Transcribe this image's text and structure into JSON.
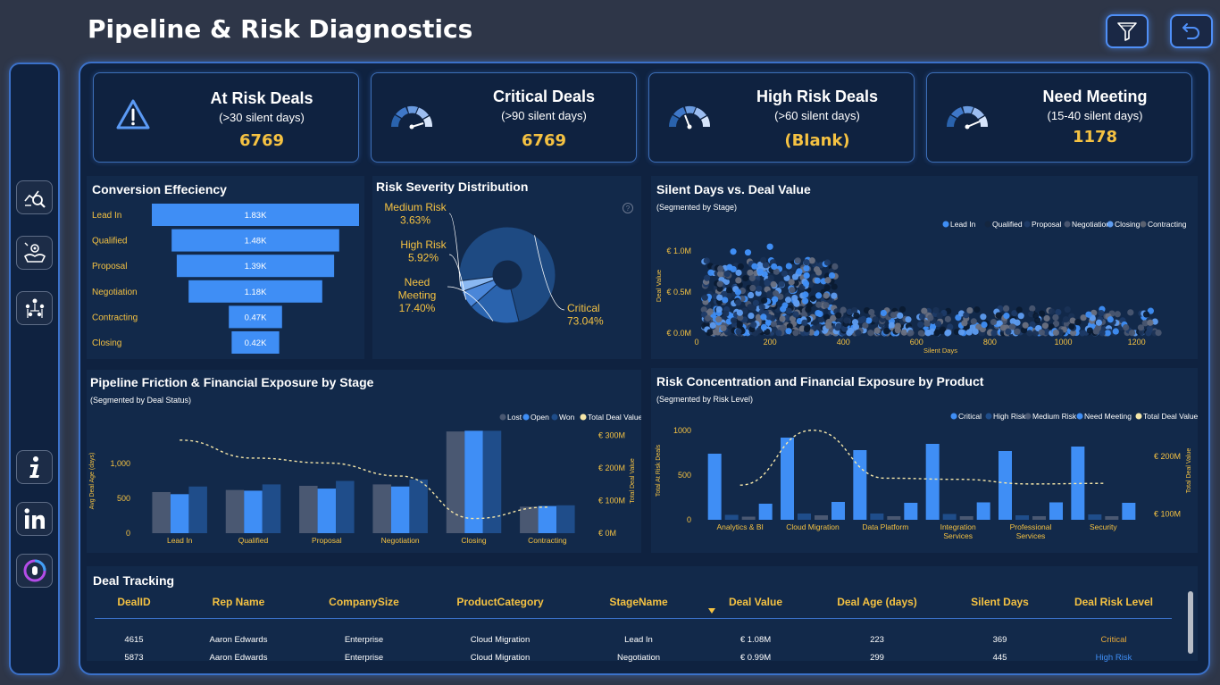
{
  "header": {
    "title": "Pipeline & Risk Diagnostics"
  },
  "kpis": [
    {
      "title": "At Risk Deals",
      "subtitle": "(>30 silent days)",
      "value": "6769",
      "icon": "warning-icon"
    },
    {
      "title": "Critical Deals",
      "subtitle": "(>90 silent days)",
      "value": "6769",
      "icon": "gauge-icon"
    },
    {
      "title": "High Risk Deals",
      "subtitle": "(>60 silent days)",
      "value": "(Blank)",
      "icon": "gauge-icon"
    },
    {
      "title": "Need Meeting",
      "subtitle": "(15-40 silent days)",
      "value": "1178",
      "icon": "gauge-icon"
    }
  ],
  "funnel": {
    "title": "Conversion Effeciency",
    "chart_data": {
      "type": "bar",
      "categories": [
        "Lead In",
        "Qualified",
        "Proposal",
        "Negotiation",
        "Contracting",
        "Closing"
      ],
      "values": [
        1830,
        1480,
        1390,
        1180,
        470,
        420
      ],
      "labels": [
        "1.83K",
        "1.48K",
        "1.39K",
        "1.18K",
        "0.47K",
        "0.42K"
      ]
    }
  },
  "donut": {
    "title": "Risk Severity Distribution",
    "chart_data": {
      "type": "pie",
      "slices": [
        {
          "name": "Critical",
          "value": 73.04,
          "label": "73.04%",
          "color": "#1e4a82"
        },
        {
          "name": "Need Meeting",
          "value": 17.4,
          "label": "17.40%",
          "color": "#2a63ad"
        },
        {
          "name": "High Risk",
          "value": 5.92,
          "label": "5.92%",
          "color": "#4a86d8"
        },
        {
          "name": "Medium Risk",
          "value": 3.63,
          "label": "3.63%",
          "color": "#8ab8f2"
        }
      ]
    }
  },
  "scatter": {
    "title": "Silent Days vs. Deal Value",
    "subtitle": "(Segmented by Stage)",
    "chart_data": {
      "type": "scatter",
      "xlabel": "Silent Days",
      "ylabel": "Deal Value",
      "x_ticks": [
        "0",
        "200",
        "400",
        "600",
        "800",
        "1000",
        "1200"
      ],
      "y_ticks": [
        "€ 0.0M",
        "€ 0.5M",
        "€ 1.0M"
      ],
      "xlim": [
        0,
        1330
      ],
      "ylim": [
        0,
        1.15
      ],
      "legend": [
        "Lead In",
        "Qualified",
        "Proposal",
        "Negotiation",
        "Closing",
        "Contracting"
      ],
      "legend_colors": [
        "#3f8ef5",
        "#14263f",
        "#1e3a66",
        "#4a5670",
        "#5e9cf0",
        "#5a6170"
      ]
    }
  },
  "friction": {
    "title": "Pipeline Friction & Financial Exposure by Stage",
    "subtitle": "(Segmented by Deal Status)",
    "chart_data": {
      "type": "bar",
      "categories": [
        "Lead In",
        "Qualified",
        "Proposal",
        "Negotiation",
        "Closing",
        "Contracting"
      ],
      "series": [
        {
          "name": "Lost",
          "values": [
            590,
            620,
            680,
            700,
            1460,
            380
          ],
          "color": "#4a5872"
        },
        {
          "name": "Open",
          "values": [
            560,
            610,
            640,
            670,
            1470,
            390
          ],
          "color": "#3f8ef5"
        },
        {
          "name": "Won",
          "values": [
            670,
            700,
            750,
            770,
            1470,
            400
          ],
          "color": "#1f4d8a"
        }
      ],
      "line_series": {
        "name": "Total Deal Value",
        "values": [
          285,
          230,
          215,
          175,
          45,
          80
        ],
        "color": "#f5e6a8"
      },
      "ylabel": "Avg Deal Age (days)",
      "y2label": "Total Deal Value",
      "ylim": [
        0,
        1500
      ],
      "y2lim": [
        0,
        320
      ],
      "y_ticks": [
        "0",
        "500",
        "1,000"
      ],
      "y2_ticks": [
        "€ 0M",
        "€ 100M",
        "€ 200M",
        "€ 300M"
      ]
    }
  },
  "product": {
    "title": "Risk Concentration and Financial Exposure by Product",
    "subtitle": "(Segmented by Risk Level)",
    "chart_data": {
      "type": "bar",
      "categories": [
        "Analytics & BI",
        "Cloud Migration",
        "Data Platform",
        "Integration Services",
        "Professional Services",
        "Security"
      ],
      "series": [
        {
          "name": "Critical",
          "values": [
            740,
            920,
            780,
            850,
            770,
            820
          ],
          "color": "#3f8ef5"
        },
        {
          "name": "High Risk",
          "values": [
            55,
            70,
            70,
            65,
            50,
            60
          ],
          "color": "#1f4d8a"
        },
        {
          "name": "Medium Risk",
          "values": [
            35,
            50,
            40,
            40,
            40,
            40
          ],
          "color": "#4a5872"
        },
        {
          "name": "Need Meeting",
          "values": [
            180,
            200,
            190,
            195,
            195,
            190
          ],
          "color": "#3f8ef5"
        }
      ],
      "line_series": {
        "name": "Total Deal Value",
        "values": [
          150,
          245,
          162,
          160,
          152,
          153
        ],
        "color": "#f5e6a8"
      },
      "ylabel": "Total At Risk Deals",
      "y2label": "Total Deal Value",
      "ylim": [
        0,
        1100
      ],
      "y2lim": [
        90,
        260
      ],
      "y_ticks": [
        "0",
        "500",
        "1000"
      ],
      "y2_ticks": [
        "€ 100M",
        "€ 200M"
      ]
    }
  },
  "table": {
    "title": "Deal Tracking",
    "columns": [
      "DealID",
      "Rep Name",
      "CompanySize",
      "ProductCategory",
      "StageName",
      "Deal Value",
      "Deal Age (days)",
      "Silent Days",
      "Deal Risk Level"
    ],
    "rows": [
      [
        "4615",
        "Aaron Edwards",
        "Enterprise",
        "Cloud Migration",
        "Lead In",
        "€ 1.08M",
        "223",
        "369",
        "Critical"
      ],
      [
        "5873",
        "Aaron Edwards",
        "Enterprise",
        "Cloud Migration",
        "Negotiation",
        "€ 0.99M",
        "299",
        "445",
        "High Risk"
      ]
    ],
    "risk_colors": {
      "Critical": "#e6a93a",
      "High Risk": "#3f8ef5"
    }
  }
}
